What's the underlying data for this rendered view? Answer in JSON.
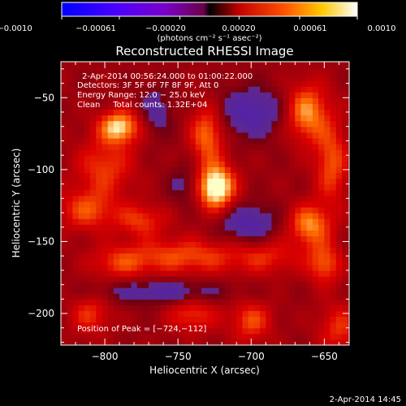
{
  "chart_data": {
    "type": "heatmap",
    "title": "Reconstructed RHESSI Image",
    "xlabel": "Heliocentric X (arcsec)",
    "ylabel": "Heliocentric Y (arcsec)",
    "xlim": [
      -830,
      -633
    ],
    "ylim": [
      -222,
      -25
    ],
    "xticks": [
      -800,
      -750,
      -700,
      -650
    ],
    "yticks": [
      -50,
      -100,
      -150,
      -200
    ],
    "xtick_labels": [
      "−800",
      "−750",
      "−700",
      "−650"
    ],
    "ytick_labels": [
      "−50",
      "−100",
      "−150",
      "−200"
    ],
    "colorbar": {
      "range": [
        -0.001,
        0.001
      ],
      "ticks": [
        -0.001,
        -0.00061,
        -0.0002,
        0.0002,
        0.00061,
        0.001
      ],
      "tick_labels": [
        "−0.0010",
        "−0.00061",
        "−0.00020",
        "0.00020",
        "0.00061",
        "0.0010"
      ],
      "units": "(photons cm⁻² s⁻¹ asec⁻²)"
    },
    "annotations": [
      "2‑Apr‑2014 00:56:24.000 to 01:00:22.000",
      "Detectors: 3F 5F 6F 7F 8F 9F, Att 0",
      "Energy Range: 12.0 − 25.0 keV",
      "Clean     Total counts: 1.32E+04"
    ],
    "peak_label": "Position of Peak = [−724,−112]",
    "peak": {
      "x": -724,
      "y": -112
    },
    "blobs": [
      {
        "x": -724,
        "y": -112,
        "sx": 9,
        "sy": 11,
        "a": 0.001
      },
      {
        "x": -730,
        "y": -75,
        "sx": 8,
        "sy": 14,
        "a": 0.00058
      },
      {
        "x": -790,
        "y": -70,
        "sx": 10,
        "sy": 8,
        "a": 0.00078
      },
      {
        "x": -800,
        "y": -98,
        "sx": 14,
        "sy": 14,
        "a": 0.00042
      },
      {
        "x": -812,
        "y": -128,
        "sx": 14,
        "sy": 10,
        "a": 0.00045
      },
      {
        "x": -775,
        "y": -135,
        "sx": 12,
        "sy": 8,
        "a": 0.0004
      },
      {
        "x": -745,
        "y": -160,
        "sx": 30,
        "sy": 9,
        "a": 0.00046
      },
      {
        "x": -790,
        "y": -165,
        "sx": 14,
        "sy": 8,
        "a": 0.00032
      },
      {
        "x": -810,
        "y": -200,
        "sx": 10,
        "sy": 10,
        "a": 0.00038
      },
      {
        "x": -740,
        "y": -200,
        "sx": 12,
        "sy": 9,
        "a": 0.0004
      },
      {
        "x": -700,
        "y": -205,
        "sx": 10,
        "sy": 10,
        "a": 0.00045
      },
      {
        "x": -688,
        "y": -160,
        "sx": 16,
        "sy": 9,
        "a": 0.0003
      },
      {
        "x": -662,
        "y": -60,
        "sx": 10,
        "sy": 14,
        "a": 0.00065
      },
      {
        "x": -645,
        "y": -95,
        "sx": 8,
        "sy": 20,
        "a": 0.00048
      },
      {
        "x": -660,
        "y": -138,
        "sx": 10,
        "sy": 10,
        "a": 0.00062
      },
      {
        "x": -650,
        "y": -165,
        "sx": 8,
        "sy": 10,
        "a": 0.0005
      },
      {
        "x": -640,
        "y": -210,
        "sx": 10,
        "sy": 12,
        "a": 0.00038
      },
      {
        "x": -700,
        "y": -60,
        "sx": 16,
        "sy": 12,
        "a": -0.00046
      },
      {
        "x": -702,
        "y": -138,
        "sx": 14,
        "sy": 10,
        "a": -0.00044
      },
      {
        "x": -760,
        "y": -185,
        "sx": 30,
        "sy": 6,
        "a": -0.0004
      },
      {
        "x": -745,
        "y": -110,
        "sx": 8,
        "sy": 10,
        "a": -0.00025
      },
      {
        "x": -765,
        "y": -60,
        "sx": 8,
        "sy": 12,
        "a": -0.0003
      }
    ]
  },
  "footer_timestamp": "2‑Apr‑2014 14:45"
}
